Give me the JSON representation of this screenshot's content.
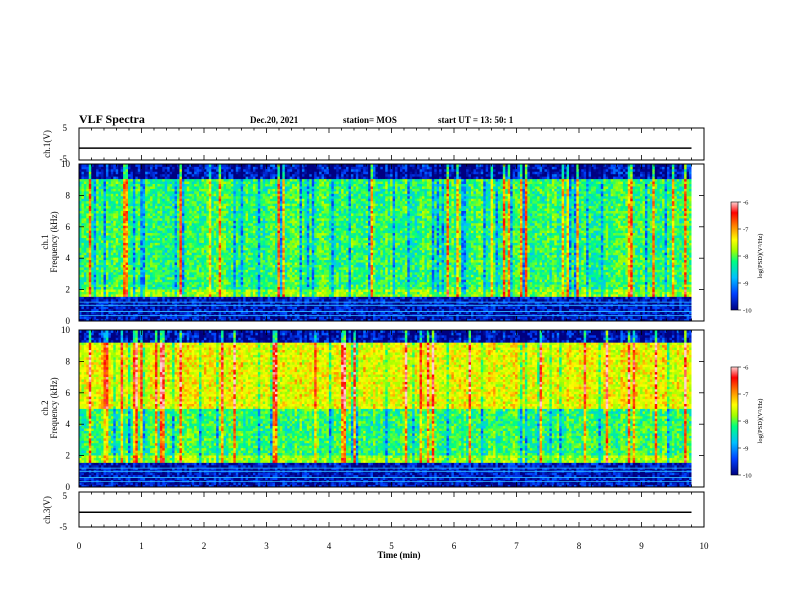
{
  "header": {
    "title": "VLF Spectra",
    "date": "Dec.20, 2021",
    "station": "station= MOS",
    "start": "start UT = 13: 50: 1"
  },
  "chart_data": [
    {
      "type": "line",
      "panel": "ch1-waveform",
      "ylabel": "ch.1(V)",
      "ylim": [
        -5,
        5
      ],
      "yticks": [
        "5",
        "-5"
      ],
      "x": [
        0,
        9.8
      ],
      "values": [
        -1.3,
        -1.3
      ]
    },
    {
      "type": "heatmap",
      "panel": "ch1-spectrogram",
      "ylabel": "ch.1\nFrequency (kHz)",
      "ylim": [
        0,
        10
      ],
      "yticks": [
        "0",
        "2",
        "4",
        "6",
        "8",
        "10"
      ],
      "xlim": [
        0,
        9.8
      ],
      "colorbar": {
        "label": "log(PSD)(V²/Hz)",
        "range": [
          -10,
          -6
        ],
        "ticks": [
          "-6",
          "-7",
          "-8",
          "-9",
          "-10"
        ],
        "colors": [
          "#000080",
          "#0040ff",
          "#00c0ff",
          "#00ff80",
          "#a0ff00",
          "#ffff00",
          "#ff8000",
          "#ff0000",
          "#ffd0d0"
        ]
      },
      "bands_khz": [
        {
          "from": 9.0,
          "to": 10.0,
          "level": -9.8
        },
        {
          "from": 2.0,
          "to": 9.0,
          "level": -8.4
        },
        {
          "from": 1.6,
          "to": 2.0,
          "level": -8.0
        },
        {
          "from": 0.0,
          "to": 1.6,
          "level": -9.8
        }
      ]
    },
    {
      "type": "heatmap",
      "panel": "ch2-spectrogram",
      "ylabel": "ch.2\nFrequency (kHz)",
      "ylim": [
        0,
        10
      ],
      "yticks": [
        "0",
        "2",
        "4",
        "6",
        "8",
        "10"
      ],
      "xlim": [
        0,
        9.8
      ],
      "colorbar": {
        "label": "log(PSD)(V²/Hz)",
        "range": [
          -10,
          -6
        ],
        "ticks": [
          "-6",
          "-7",
          "-8",
          "-9",
          "-10"
        ],
        "colors": [
          "#000080",
          "#0040ff",
          "#00c0ff",
          "#00ff80",
          "#a0ff00",
          "#ffff00",
          "#ff8000",
          "#ff0000",
          "#ffd0d0"
        ]
      },
      "bands_khz": [
        {
          "from": 9.2,
          "to": 10.0,
          "level": -9.8
        },
        {
          "from": 5.0,
          "to": 9.2,
          "level": -7.6
        },
        {
          "from": 2.0,
          "to": 5.0,
          "level": -8.4
        },
        {
          "from": 1.6,
          "to": 2.0,
          "level": -8.0
        },
        {
          "from": 0.0,
          "to": 1.6,
          "level": -9.8
        }
      ]
    },
    {
      "type": "line",
      "panel": "ch3-waveform",
      "ylabel": "ch.3(V)",
      "ylim": [
        -5,
        5
      ],
      "yticks": [
        "5",
        "-5"
      ],
      "x": [
        0,
        9.8
      ],
      "values": [
        -0.8,
        -0.8
      ]
    },
    {
      "type": "axis",
      "panel": "time-axis",
      "xlabel": "Time (min)",
      "xlim": [
        0,
        10
      ],
      "xticks": [
        "0",
        "1",
        "2",
        "3",
        "4",
        "5",
        "6",
        "7",
        "8",
        "9",
        "10"
      ]
    }
  ]
}
